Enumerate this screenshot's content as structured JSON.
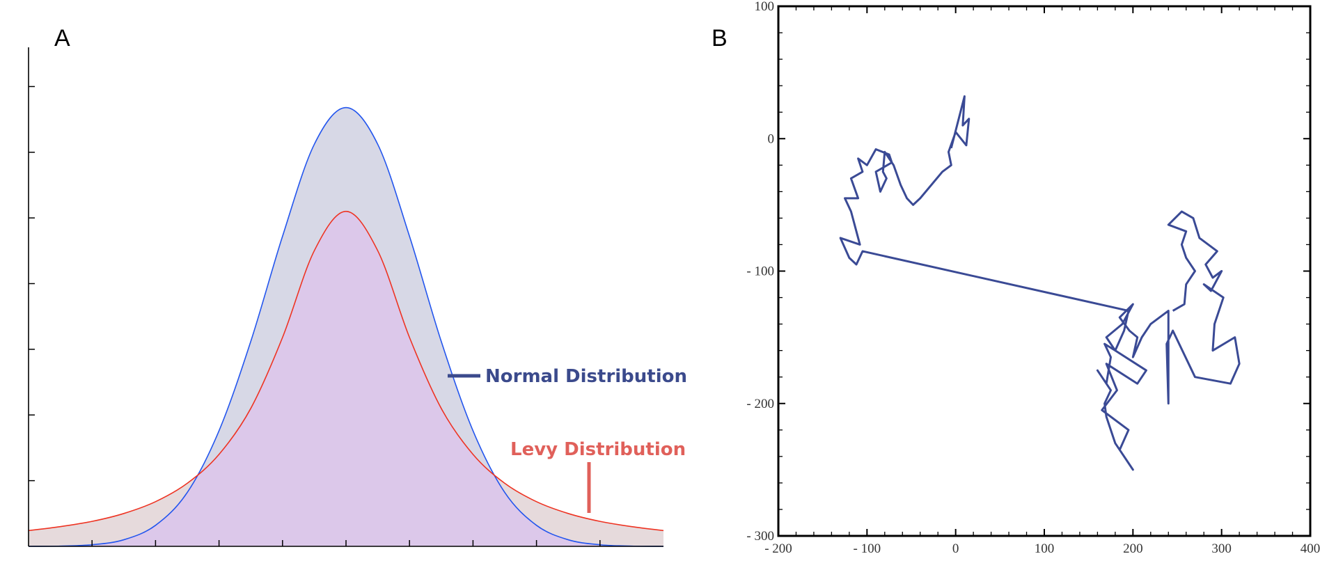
{
  "chart_data": [
    {
      "panel_label": "A",
      "type": "area",
      "title": "",
      "xlabel": "",
      "ylabel": "",
      "xlim": [
        -5,
        5
      ],
      "ylim": [
        0,
        0.4
      ],
      "x_ticks": [
        -4,
        -3,
        -2,
        -1,
        0,
        1,
        2,
        3,
        4
      ],
      "y_ticks": [
        0.05,
        0.1,
        0.15,
        0.2,
        0.25,
        0.3,
        0.35
      ],
      "tick_labels_visible": false,
      "series": [
        {
          "name": "Normal Distribution",
          "color": "#3b4a8c",
          "line_color": "#2255ee",
          "fill": "#d7d8e6",
          "x": [
            -5,
            -4.5,
            -4,
            -3.5,
            -3,
            -2.5,
            -2,
            -1.5,
            -1,
            -0.5,
            0,
            0.5,
            1,
            1.5,
            2,
            2.5,
            3,
            3.5,
            4,
            4.5,
            5
          ],
          "y": [
            0.0,
            0.0002,
            0.0012,
            0.005,
            0.016,
            0.041,
            0.088,
            0.156,
            0.236,
            0.306,
            0.334,
            0.306,
            0.236,
            0.156,
            0.088,
            0.041,
            0.016,
            0.005,
            0.0012,
            0.0002,
            0.0
          ]
        },
        {
          "name": "Levy Distribution",
          "color": "#e0605a",
          "line_color": "#ee3322",
          "fill": "#dcc8ea",
          "x": [
            -5,
            -4.5,
            -4,
            -3.5,
            -3,
            -2.5,
            -2,
            -1.5,
            -1,
            -0.5,
            0,
            0.5,
            1,
            1.5,
            2,
            2.5,
            3,
            3.5,
            4,
            4.5,
            5
          ],
          "y": [
            0.012,
            0.015,
            0.019,
            0.025,
            0.034,
            0.048,
            0.07,
            0.105,
            0.159,
            0.225,
            0.255,
            0.225,
            0.159,
            0.105,
            0.07,
            0.048,
            0.034,
            0.025,
            0.019,
            0.015,
            0.012
          ]
        }
      ],
      "legend_placement": "right, beside curves"
    },
    {
      "panel_label": "B",
      "type": "line",
      "title": "",
      "xlabel": "",
      "ylabel": "",
      "xlim": [
        -200,
        400
      ],
      "ylim": [
        -300,
        100
      ],
      "x_ticks": [
        -200,
        -100,
        0,
        100,
        200,
        300,
        400
      ],
      "y_ticks": [
        -300,
        -200,
        -100,
        0,
        100
      ],
      "x_tick_labels": [
        "- 200",
        "- 100",
        "0",
        "100",
        "200",
        "300",
        "400"
      ],
      "y_tick_labels": [
        "- 300",
        "- 200",
        "- 100",
        "0",
        "100"
      ],
      "color": "#3a4a95",
      "series": [
        {
          "x": [
            -5,
            10,
            8,
            15,
            12,
            0,
            -8,
            -5,
            -15,
            -40,
            -48,
            -55,
            -62,
            -70,
            -80,
            -82,
            -78,
            -85,
            -90,
            -72,
            -75,
            -90,
            -100,
            -110,
            -105,
            -118,
            -110,
            -125,
            -118,
            -108,
            -130,
            -120,
            -112,
            -105,
            195,
            190,
            180,
            215,
            205,
            170,
            182,
            165,
            195,
            185,
            200,
            190,
            180,
            170,
            168,
            175,
            160,
            170,
            175,
            168,
            180,
            170,
            188,
            200,
            185,
            196,
            205,
            200,
            210,
            220,
            240,
            240,
            238,
            245,
            270,
            310,
            320,
            315,
            290,
            292,
            302,
            280,
            288,
            300,
            290,
            282,
            295,
            275,
            268,
            255,
            240,
            260,
            255,
            260,
            270,
            260,
            258,
            245
          ],
          "y": [
            -7,
            32,
            10,
            15,
            -5,
            5,
            -10,
            -20,
            -25,
            -45,
            -50,
            -45,
            -35,
            -20,
            -10,
            -25,
            -30,
            -40,
            -25,
            -18,
            -12,
            -8,
            -20,
            -15,
            -25,
            -30,
            -45,
            -45,
            -55,
            -80,
            -75,
            -90,
            -95,
            -85,
            -130,
            -145,
            -160,
            -175,
            -185,
            -170,
            -190,
            -205,
            -220,
            -235,
            -250,
            -240,
            -230,
            -210,
            -200,
            -190,
            -175,
            -185,
            -165,
            -155,
            -160,
            -150,
            -140,
            -125,
            -135,
            -145,
            -150,
            -165,
            -150,
            -140,
            -130,
            -200,
            -155,
            -145,
            -180,
            -185,
            -170,
            -150,
            -160,
            -140,
            -120,
            -110,
            -115,
            -100,
            -105,
            -95,
            -85,
            -75,
            -60,
            -55,
            -65,
            -70,
            -80,
            -90,
            -100,
            -110,
            -125,
            -130
          ]
        }
      ]
    }
  ]
}
